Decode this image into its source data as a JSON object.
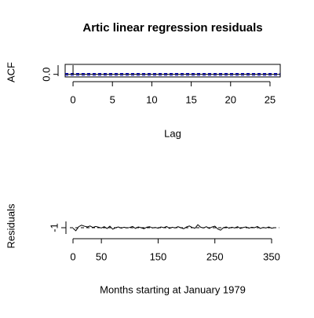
{
  "chart_data": [
    {
      "type": "acf",
      "title": "Artic linear regression residuals",
      "x_label": "Lag",
      "y_label": "ACF",
      "x": [
        0,
        1,
        2,
        3,
        4,
        5,
        6,
        7,
        8,
        9,
        10,
        11,
        12,
        13,
        14,
        15,
        16,
        17,
        18,
        19,
        20,
        21,
        22,
        23,
        24,
        25
      ],
      "values": [
        1,
        0.08,
        0.03,
        -0.02,
        0.05,
        0.01,
        -0.03,
        0.02,
        0.04,
        -0.01,
        0.03,
        0.0,
        0.06,
        0.02,
        -0.02,
        0.01,
        0.03,
        -0.04,
        0.02,
        0.0,
        0.01,
        -0.02,
        0.03,
        0.01,
        -0.01,
        0.02
      ],
      "color": "#000000",
      "ci_lines": [
        -0.105,
        0.105
      ],
      "ci_color": "#0000cd",
      "xlim": [
        -1,
        26.3
      ],
      "xticks": [
        0,
        5,
        10,
        15,
        20,
        25
      ],
      "ylim": [
        -0.2,
        1.0
      ],
      "yticks": [
        {
          "value": 0,
          "label": "0.0"
        }
      ]
    },
    {
      "type": "line",
      "x_label": "Months starting at January 1979",
      "y_label": "Residuals",
      "x": [
        0,
        5,
        10,
        15,
        20,
        25,
        30,
        35,
        40,
        45,
        50,
        55,
        60,
        65,
        70,
        75,
        80,
        85,
        90,
        95,
        100,
        105,
        110,
        115,
        120,
        125,
        130,
        135,
        140,
        145,
        150,
        155,
        160,
        165,
        170,
        175,
        180,
        185,
        190,
        195,
        200,
        205,
        210,
        215,
        220,
        225,
        230,
        235,
        240,
        245,
        250,
        255,
        260,
        265,
        270,
        275,
        280,
        285,
        290,
        295,
        300,
        305,
        310,
        315,
        320,
        325,
        330,
        335,
        340,
        345,
        350,
        355
      ],
      "values": [
        -1.02,
        -1.12,
        -0.96,
        -0.9,
        -0.94,
        -0.97,
        -0.93,
        -0.99,
        -0.95,
        -0.98,
        -1.01,
        -0.96,
        -1.03,
        -0.94,
        -1.06,
        -1.0,
        -0.97,
        -1.02,
        -0.98,
        -1.01,
        -0.99,
        -0.95,
        -1.03,
        -0.97,
        -1.0,
        -1.04,
        -0.98,
        -0.96,
        -1.01,
        -0.99,
        -1.02,
        -0.97,
        -1.0,
        -0.95,
        -1.03,
        -0.98,
        -1.01,
        -0.96,
        -1.0,
        -1.04,
        -0.97,
        -0.93,
        -0.99,
        -1.02,
        -0.88,
        -0.98,
        -1.01,
        -0.96,
        -1.03,
        -0.97,
        -0.94,
        -1.05,
        -1.1,
        -1.0,
        -0.97,
        -1.02,
        -0.98,
        -1.01,
        -0.96,
        -1.03,
        -0.99,
        -0.97,
        -1.02,
        -0.98,
        -1.0,
        -0.95,
        -1.03,
        -0.99,
        -1.01,
        -0.97,
        -1.02,
        -1.0
      ],
      "color": "#000000",
      "reference_line": -1,
      "xlim": [
        0,
        355
      ],
      "xticks": [
        0,
        50,
        150,
        250,
        350
      ],
      "ylim": [
        -1.25,
        -0.75
      ],
      "yticks": [
        -1
      ]
    }
  ]
}
